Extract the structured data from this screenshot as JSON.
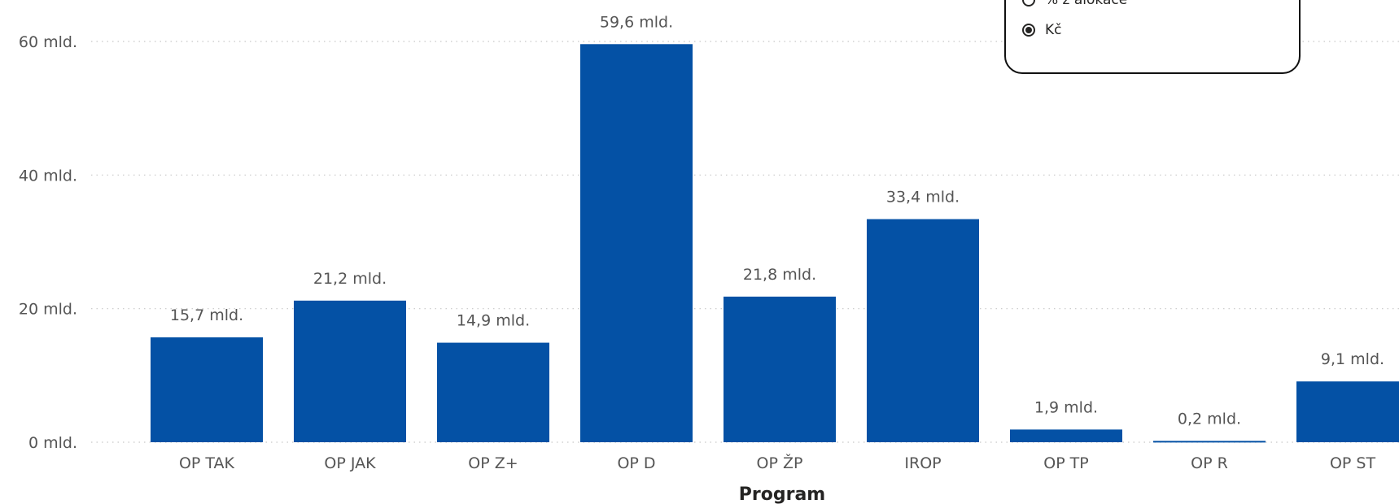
{
  "chart_data": {
    "type": "bar",
    "categories": [
      "OP TAK",
      "OP JAK",
      "OP Z+",
      "OP D",
      "OP ŽP",
      "IROP",
      "OP TP",
      "OP R",
      "OP ST"
    ],
    "values": [
      15.7,
      21.2,
      14.9,
      59.6,
      21.8,
      33.4,
      1.9,
      0.2,
      9.1
    ],
    "data_labels": [
      "15,7 mld.",
      "21,2 mld.",
      "14,9 mld.",
      "59,6 mld.",
      "21,8 mld.",
      "33,4 mld.",
      "1,9 mld.",
      "0,2 mld.",
      "9,1 mld."
    ],
    "y_ticks": [
      0,
      20,
      40,
      60
    ],
    "y_tick_labels": [
      "0 mld.",
      "20 mld.",
      "40 mld.",
      "60 mld."
    ],
    "xlabel": "Program",
    "ylabel": "",
    "ylim": [
      0,
      60
    ],
    "grid": true,
    "bar_color": "#0451A5"
  },
  "unit_selector": {
    "options": [
      {
        "label": "% z alokace",
        "selected": false
      },
      {
        "label": "Kč",
        "selected": true
      }
    ]
  }
}
